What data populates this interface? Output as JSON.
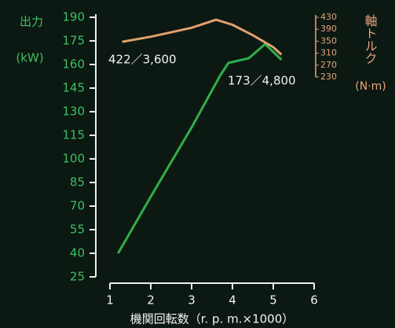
{
  "chart_data": {
    "type": "line",
    "y_label": "出力",
    "y_unit": "(kW)",
    "y2_label": "軸トルク",
    "y2_unit": "(N·m)",
    "x_label": "機関回転数（r. p. m.×1000）",
    "xlim": [
      1,
      6
    ],
    "xticks": [
      1,
      2,
      3,
      4,
      5,
      6
    ],
    "ylim": [
      25,
      190
    ],
    "yticks": [
      25,
      40,
      55,
      70,
      85,
      100,
      115,
      130,
      145,
      160,
      175,
      190
    ],
    "y2lim": [
      230,
      430
    ],
    "y2ticks": [
      230,
      270,
      310,
      350,
      390,
      430
    ],
    "series": [
      {
        "name": "出力",
        "color": "#2fae4a",
        "x": [
          1.2,
          2,
          3,
          3.7,
          3.9,
          4.4,
          4.8,
          5.2
        ],
        "values": [
          40,
          76,
          120,
          153,
          161,
          164,
          173,
          163
        ]
      },
      {
        "name": "軸トルク",
        "color": "#e0a070",
        "axis": "y2",
        "x": [
          1.3,
          2,
          3,
          3.6,
          4,
          4.5,
          5,
          5.2
        ],
        "values": [
          348,
          365,
          395,
          422,
          405,
          370,
          330,
          305
        ]
      }
    ],
    "annotations": [
      "422／3,600",
      "173／4,800"
    ]
  }
}
